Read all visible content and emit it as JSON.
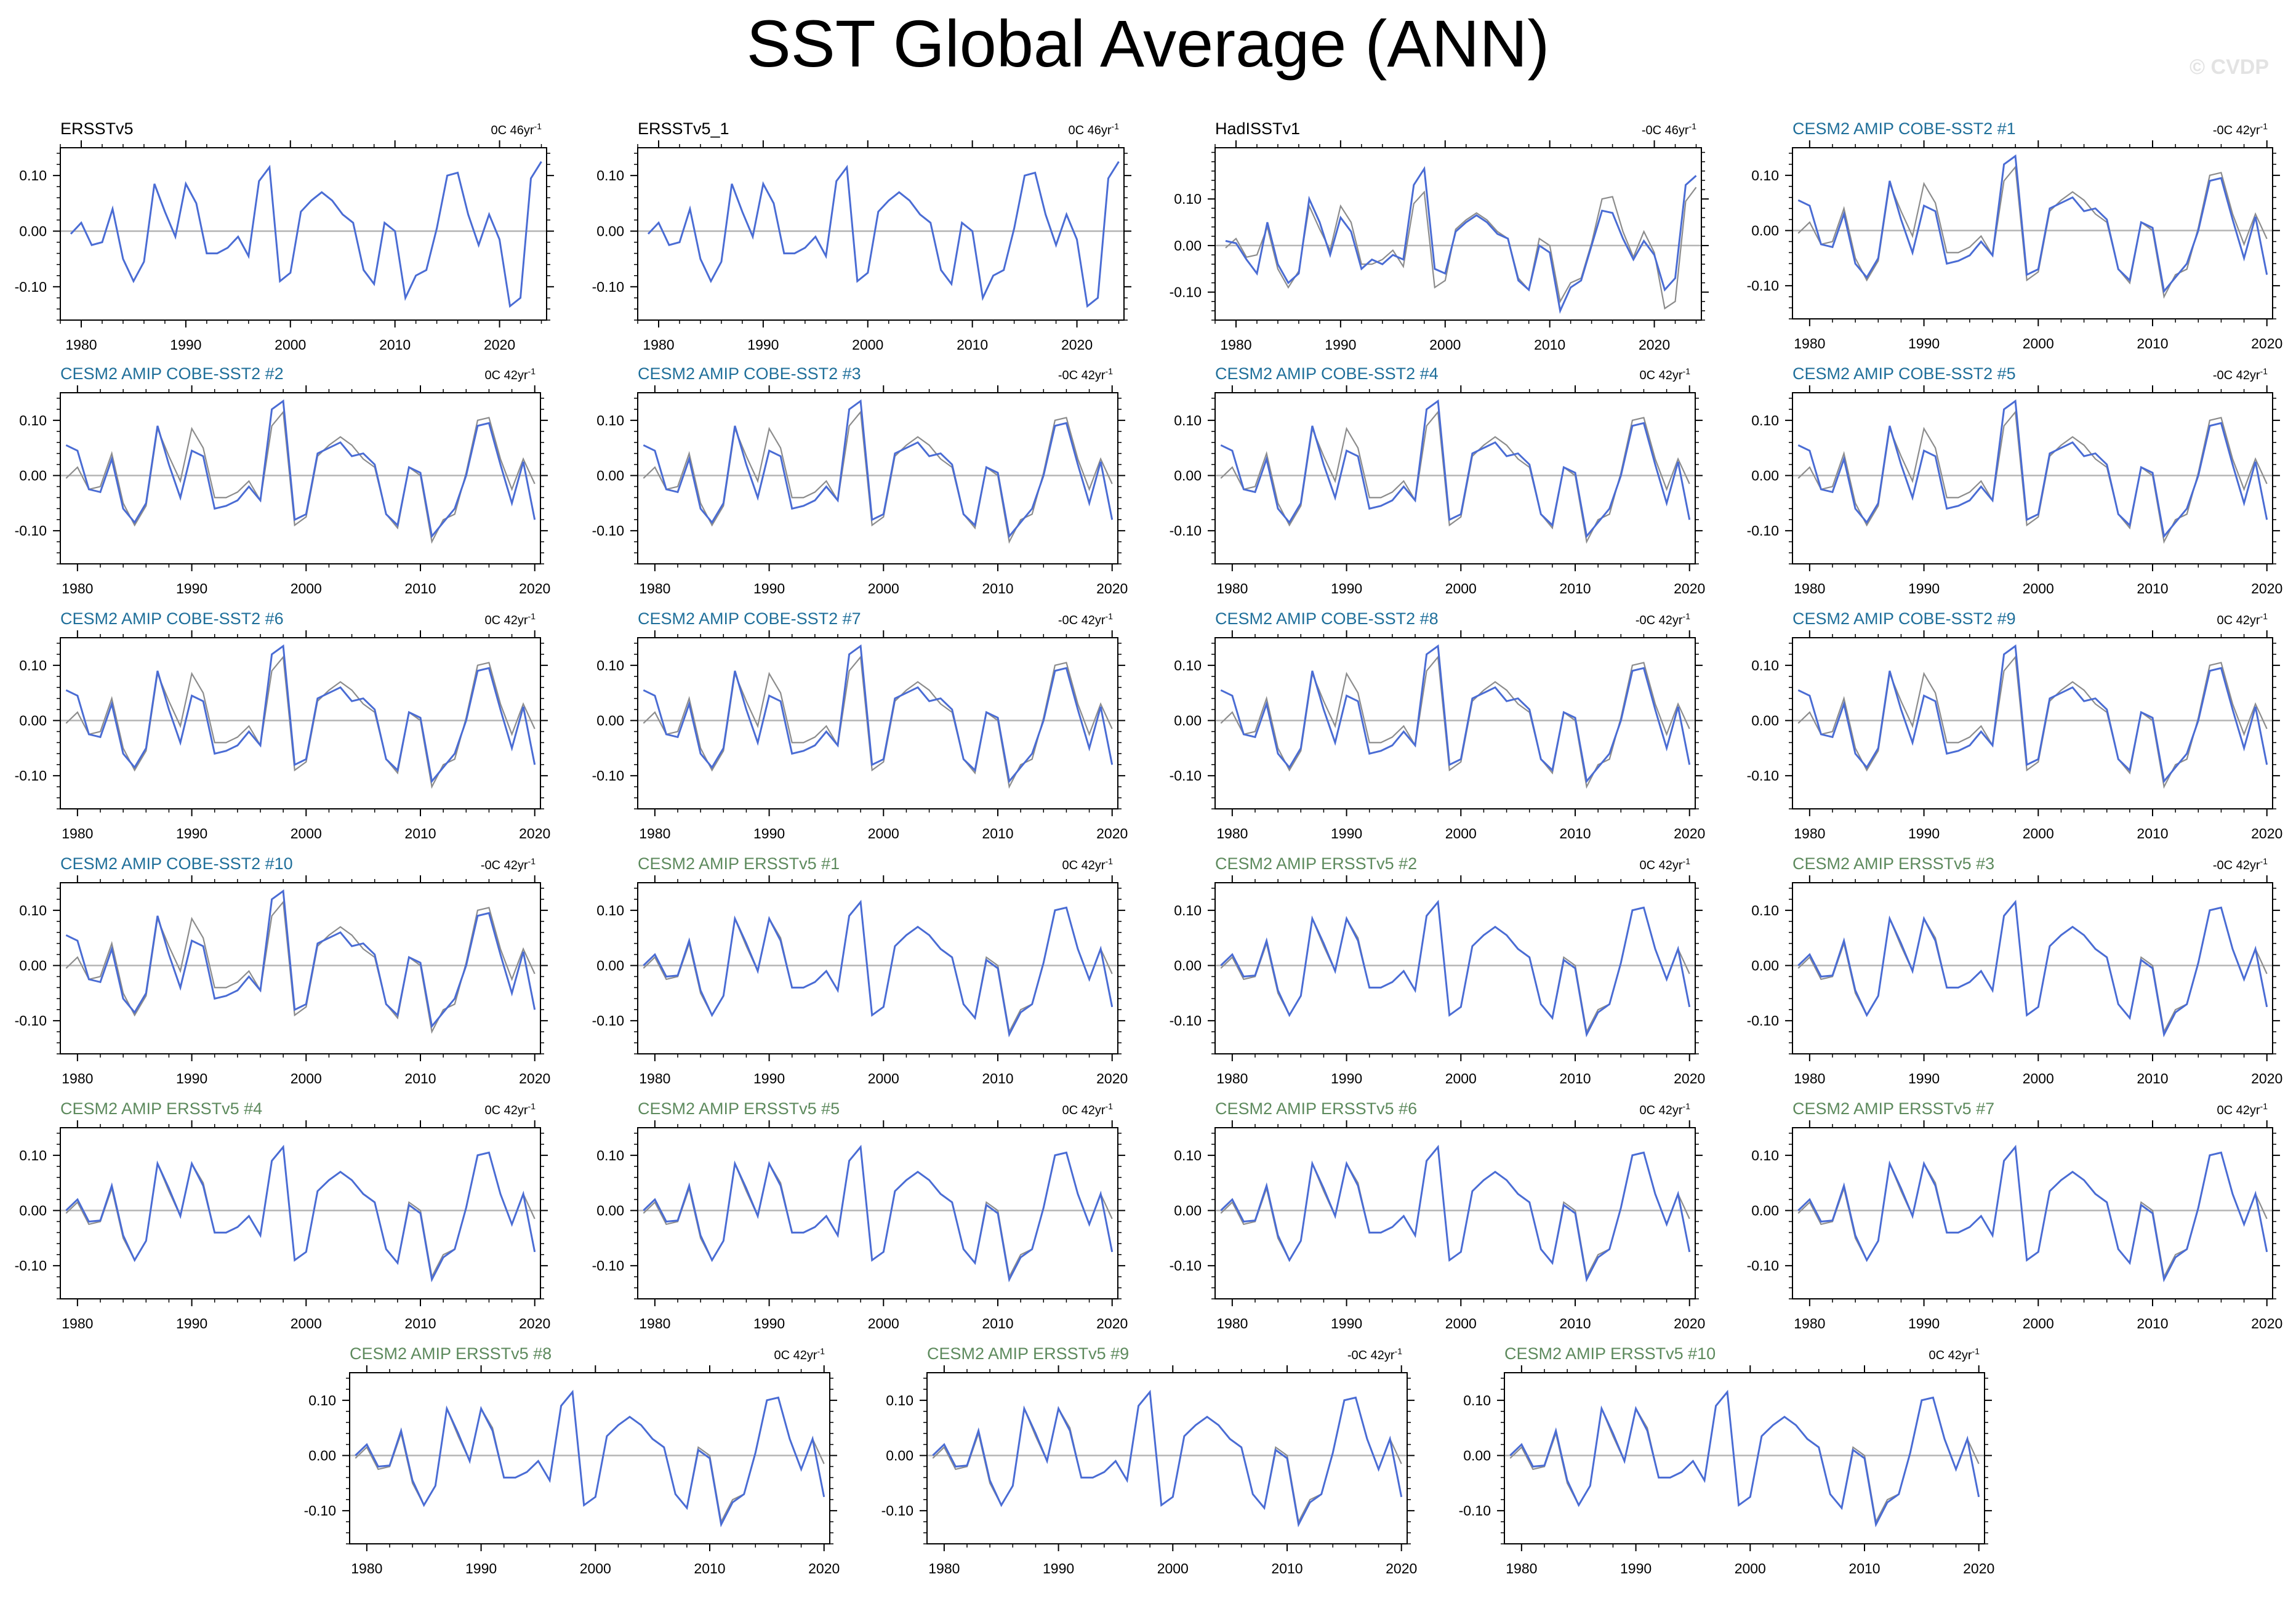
{
  "figure": {
    "title": "SST Global Average (ANN)",
    "watermark": "© CVDP"
  },
  "colors": {
    "model_line": "#4a6cd4",
    "obs_line": "#8c8c8c",
    "obs_name": "#000000",
    "cobe_name": "#1f6f9a",
    "ersst_name": "#5d8a5d",
    "axis": "#000000",
    "zero_line": "#b4b4b4"
  },
  "chart_data": {
    "type": "line",
    "x_axis": {
      "ticks": [
        1980,
        1990,
        2000,
        2010,
        2020
      ],
      "tick_labels": [
        "1980",
        "1990",
        "2000",
        "2010",
        "2020"
      ]
    },
    "y_axis": {
      "ticks": [
        -0.1,
        0.0,
        0.1
      ],
      "tick_labels": [
        "-0.10",
        "0.00",
        "0.10"
      ]
    },
    "reference_series": {
      "years": [
        1979,
        1980,
        1981,
        1982,
        1983,
        1984,
        1985,
        1986,
        1987,
        1988,
        1989,
        1990,
        1991,
        1992,
        1993,
        1994,
        1995,
        1996,
        1997,
        1998,
        1999,
        2000,
        2001,
        2002,
        2003,
        2004,
        2005,
        2006,
        2007,
        2008,
        2009,
        2010,
        2011,
        2012,
        2013,
        2014,
        2015,
        2016,
        2017,
        2018,
        2019,
        2020,
        2021,
        2022,
        2023,
        2024
      ],
      "values": [
        -0.005,
        0.015,
        -0.025,
        -0.02,
        0.04,
        -0.05,
        -0.09,
        -0.055,
        0.085,
        0.035,
        -0.01,
        0.085,
        0.05,
        -0.04,
        -0.04,
        -0.03,
        -0.01,
        -0.045,
        0.09,
        0.115,
        -0.09,
        -0.075,
        0.035,
        0.055,
        0.07,
        0.055,
        0.03,
        0.015,
        -0.07,
        -0.095,
        0.015,
        0.0,
        -0.12,
        -0.08,
        -0.07,
        0.005,
        0.1,
        0.105,
        0.03,
        -0.025,
        0.03,
        -0.015,
        -0.135,
        -0.12,
        0.095,
        0.125
      ]
    },
    "panels": [
      {
        "name": "ERSSTv5",
        "name_color": "obs",
        "trend": "0C 46yr",
        "x_range": [
          1978,
          2024.5
        ],
        "y_range": [
          -0.16,
          0.15
        ],
        "series": [
          "reference"
        ]
      },
      {
        "name": "ERSSTv5_1",
        "name_color": "obs",
        "trend": "0C 46yr",
        "x_range": [
          1978,
          2024.5
        ],
        "y_range": [
          -0.16,
          0.15
        ],
        "series": [
          "reference"
        ]
      },
      {
        "name": "HadISSTv1",
        "name_color": "obs",
        "trend": "-0C 46yr",
        "x_range": [
          1978,
          2024.5
        ],
        "y_range": [
          -0.16,
          0.21
        ],
        "series": [
          "reference",
          "model"
        ],
        "model_values": [
          0.01,
          0.005,
          -0.03,
          -0.06,
          0.05,
          -0.04,
          -0.08,
          -0.06,
          0.1,
          0.05,
          -0.02,
          0.06,
          0.03,
          -0.05,
          -0.03,
          -0.04,
          -0.02,
          -0.03,
          0.13,
          0.165,
          -0.05,
          -0.06,
          0.03,
          0.05,
          0.065,
          0.05,
          0.025,
          0.015,
          -0.075,
          -0.095,
          0.0,
          -0.015,
          -0.14,
          -0.09,
          -0.075,
          0.0,
          0.075,
          0.07,
          0.015,
          -0.03,
          0.01,
          -0.02,
          -0.095,
          -0.07,
          0.13,
          0.15
        ]
      },
      {
        "name": "CESM2 AMIP COBE-SST2 #1",
        "name_color": "cobe",
        "trend": "-0C 42yr",
        "x_range": [
          1978.5,
          2020.5
        ],
        "y_range": [
          -0.16,
          0.15
        ],
        "series": [
          "reference",
          "model"
        ],
        "model": "cobe"
      },
      {
        "name": "CESM2 AMIP COBE-SST2 #2",
        "name_color": "cobe",
        "trend": "0C 42yr",
        "x_range": [
          1978.5,
          2020.5
        ],
        "y_range": [
          -0.16,
          0.15
        ],
        "series": [
          "reference",
          "model"
        ],
        "model": "cobe"
      },
      {
        "name": "CESM2 AMIP COBE-SST2 #3",
        "name_color": "cobe",
        "trend": "-0C 42yr",
        "x_range": [
          1978.5,
          2020.5
        ],
        "y_range": [
          -0.16,
          0.15
        ],
        "series": [
          "reference",
          "model"
        ],
        "model": "cobe"
      },
      {
        "name": "CESM2 AMIP COBE-SST2 #4",
        "name_color": "cobe",
        "trend": "0C 42yr",
        "x_range": [
          1978.5,
          2020.5
        ],
        "y_range": [
          -0.16,
          0.15
        ],
        "series": [
          "reference",
          "model"
        ],
        "model": "cobe"
      },
      {
        "name": "CESM2 AMIP COBE-SST2 #5",
        "name_color": "cobe",
        "trend": "-0C 42yr",
        "x_range": [
          1978.5,
          2020.5
        ],
        "y_range": [
          -0.16,
          0.15
        ],
        "series": [
          "reference",
          "model"
        ],
        "model": "cobe"
      },
      {
        "name": "CESM2 AMIP COBE-SST2 #6",
        "name_color": "cobe",
        "trend": "0C 42yr",
        "x_range": [
          1978.5,
          2020.5
        ],
        "y_range": [
          -0.16,
          0.15
        ],
        "series": [
          "reference",
          "model"
        ],
        "model": "cobe"
      },
      {
        "name": "CESM2 AMIP COBE-SST2 #7",
        "name_color": "cobe",
        "trend": "-0C 42yr",
        "x_range": [
          1978.5,
          2020.5
        ],
        "y_range": [
          -0.16,
          0.15
        ],
        "series": [
          "reference",
          "model"
        ],
        "model": "cobe"
      },
      {
        "name": "CESM2 AMIP COBE-SST2 #8",
        "name_color": "cobe",
        "trend": "-0C 42yr",
        "x_range": [
          1978.5,
          2020.5
        ],
        "y_range": [
          -0.16,
          0.15
        ],
        "series": [
          "reference",
          "model"
        ],
        "model": "cobe"
      },
      {
        "name": "CESM2 AMIP COBE-SST2 #9",
        "name_color": "cobe",
        "trend": "0C 42yr",
        "x_range": [
          1978.5,
          2020.5
        ],
        "y_range": [
          -0.16,
          0.15
        ],
        "series": [
          "reference",
          "model"
        ],
        "model": "cobe"
      },
      {
        "name": "CESM2 AMIP COBE-SST2 #10",
        "name_color": "cobe",
        "trend": "-0C 42yr",
        "x_range": [
          1978.5,
          2020.5
        ],
        "y_range": [
          -0.16,
          0.15
        ],
        "series": [
          "reference",
          "model"
        ],
        "model": "cobe"
      },
      {
        "name": "CESM2 AMIP ERSSTv5 #1",
        "name_color": "ersst",
        "trend": "0C 42yr",
        "x_range": [
          1978.5,
          2020.5
        ],
        "y_range": [
          -0.16,
          0.15
        ],
        "series": [
          "reference",
          "model"
        ],
        "model": "ersst"
      },
      {
        "name": "CESM2 AMIP ERSSTv5 #2",
        "name_color": "ersst",
        "trend": "0C 42yr",
        "x_range": [
          1978.5,
          2020.5
        ],
        "y_range": [
          -0.16,
          0.15
        ],
        "series": [
          "reference",
          "model"
        ],
        "model": "ersst"
      },
      {
        "name": "CESM2 AMIP ERSSTv5 #3",
        "name_color": "ersst",
        "trend": "-0C 42yr",
        "x_range": [
          1978.5,
          2020.5
        ],
        "y_range": [
          -0.16,
          0.15
        ],
        "series": [
          "reference",
          "model"
        ],
        "model": "ersst"
      },
      {
        "name": "CESM2 AMIP ERSSTv5 #4",
        "name_color": "ersst",
        "trend": "0C 42yr",
        "x_range": [
          1978.5,
          2020.5
        ],
        "y_range": [
          -0.16,
          0.15
        ],
        "series": [
          "reference",
          "model"
        ],
        "model": "ersst"
      },
      {
        "name": "CESM2 AMIP ERSSTv5 #5",
        "name_color": "ersst",
        "trend": "0C 42yr",
        "x_range": [
          1978.5,
          2020.5
        ],
        "y_range": [
          -0.16,
          0.15
        ],
        "series": [
          "reference",
          "model"
        ],
        "model": "ersst"
      },
      {
        "name": "CESM2 AMIP ERSSTv5 #6",
        "name_color": "ersst",
        "trend": "0C 42yr",
        "x_range": [
          1978.5,
          2020.5
        ],
        "y_range": [
          -0.16,
          0.15
        ],
        "series": [
          "reference",
          "model"
        ],
        "model": "ersst"
      },
      {
        "name": "CESM2 AMIP ERSSTv5 #7",
        "name_color": "ersst",
        "trend": "0C 42yr",
        "x_range": [
          1978.5,
          2020.5
        ],
        "y_range": [
          -0.16,
          0.15
        ],
        "series": [
          "reference",
          "model"
        ],
        "model": "ersst"
      },
      {
        "name": "CESM2 AMIP ERSSTv5 #8",
        "name_color": "ersst",
        "trend": "0C 42yr",
        "x_range": [
          1978.5,
          2020.5
        ],
        "y_range": [
          -0.16,
          0.15
        ],
        "series": [
          "reference",
          "model"
        ],
        "model": "ersst"
      },
      {
        "name": "CESM2 AMIP ERSSTv5 #9",
        "name_color": "ersst",
        "trend": "-0C 42yr",
        "x_range": [
          1978.5,
          2020.5
        ],
        "y_range": [
          -0.16,
          0.15
        ],
        "series": [
          "reference",
          "model"
        ],
        "model": "ersst"
      },
      {
        "name": "CESM2 AMIP ERSSTv5 #10",
        "name_color": "ersst",
        "trend": "0C 42yr",
        "x_range": [
          1978.5,
          2020.5
        ],
        "y_range": [
          -0.16,
          0.15
        ],
        "series": [
          "reference",
          "model"
        ],
        "model": "ersst"
      }
    ],
    "model_series": {
      "years": [
        1979,
        1980,
        1981,
        1982,
        1983,
        1984,
        1985,
        1986,
        1987,
        1988,
        1989,
        1990,
        1991,
        1992,
        1993,
        1994,
        1995,
        1996,
        1997,
        1998,
        1999,
        2000,
        2001,
        2002,
        2003,
        2004,
        2005,
        2006,
        2007,
        2008,
        2009,
        2010,
        2011,
        2012,
        2013,
        2014,
        2015,
        2016,
        2017,
        2018,
        2019,
        2020
      ],
      "cobe": [
        0.055,
        0.045,
        -0.025,
        -0.03,
        0.03,
        -0.06,
        -0.085,
        -0.05,
        0.09,
        0.02,
        -0.04,
        0.045,
        0.035,
        -0.06,
        -0.055,
        -0.045,
        -0.02,
        -0.045,
        0.12,
        0.135,
        -0.08,
        -0.07,
        0.04,
        0.05,
        0.06,
        0.035,
        0.04,
        0.02,
        -0.07,
        -0.09,
        0.015,
        0.005,
        -0.11,
        -0.085,
        -0.06,
        0.0,
        0.09,
        0.095,
        0.02,
        -0.05,
        0.025,
        -0.08
      ],
      "ersst": [
        0.0,
        0.02,
        -0.02,
        -0.018,
        0.045,
        -0.045,
        -0.09,
        -0.055,
        0.085,
        0.04,
        -0.01,
        0.085,
        0.045,
        -0.04,
        -0.04,
        -0.03,
        -0.01,
        -0.045,
        0.09,
        0.115,
        -0.09,
        -0.075,
        0.035,
        0.055,
        0.07,
        0.055,
        0.03,
        0.015,
        -0.07,
        -0.095,
        0.01,
        -0.005,
        -0.125,
        -0.085,
        -0.07,
        0.005,
        0.1,
        0.105,
        0.03,
        -0.025,
        0.03,
        -0.075
      ]
    }
  }
}
